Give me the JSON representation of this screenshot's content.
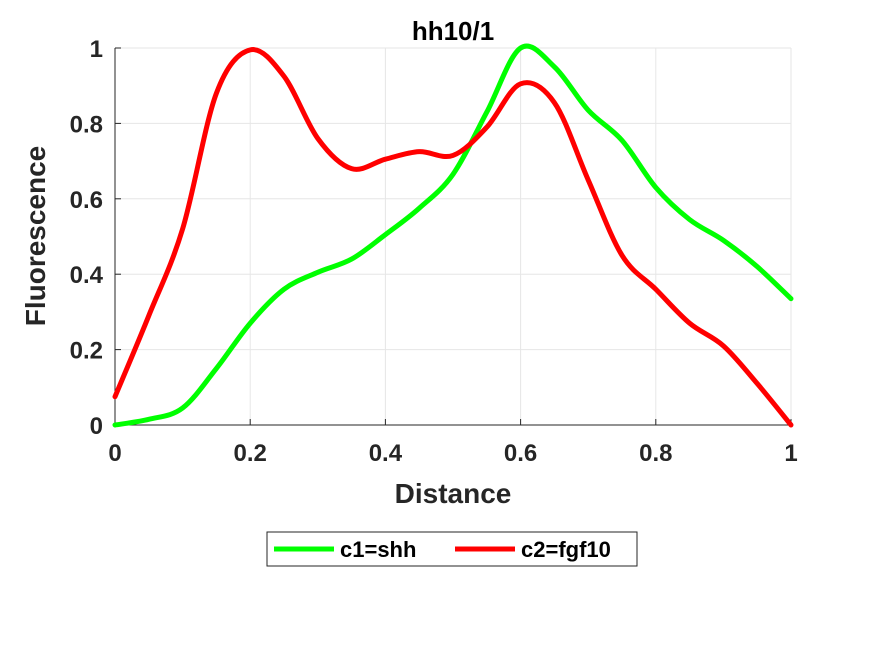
{
  "chart_data": {
    "type": "line",
    "title": "hh10/1",
    "xlabel": "Distance",
    "ylabel": "Fluorescence",
    "xlim": [
      0,
      1
    ],
    "ylim": [
      0,
      1
    ],
    "xticks": [
      "0",
      "0.2",
      "0.4",
      "0.6",
      "0.8",
      "1"
    ],
    "yticks": [
      "0",
      "0.2",
      "0.4",
      "0.6",
      "0.8",
      "1"
    ],
    "grid": true,
    "legend_position": "bottom-outside",
    "series": [
      {
        "name": "c1=shh",
        "color": "#00ff00",
        "x": [
          0,
          0.05,
          0.1,
          0.15,
          0.2,
          0.25,
          0.3,
          0.35,
          0.4,
          0.45,
          0.5,
          0.55,
          0.6,
          0.65,
          0.7,
          0.75,
          0.8,
          0.85,
          0.9,
          0.95,
          1.0
        ],
        "y": [
          0,
          0.015,
          0.045,
          0.15,
          0.27,
          0.36,
          0.405,
          0.44,
          0.505,
          0.575,
          0.665,
          0.83,
          1.0,
          0.95,
          0.835,
          0.755,
          0.63,
          0.545,
          0.49,
          0.42,
          0.335
        ]
      },
      {
        "name": "c2=fgf10",
        "color": "#ff0000",
        "x": [
          0,
          0.05,
          0.1,
          0.15,
          0.2,
          0.25,
          0.3,
          0.35,
          0.4,
          0.45,
          0.5,
          0.55,
          0.6,
          0.65,
          0.7,
          0.75,
          0.8,
          0.85,
          0.9,
          0.95,
          1.0
        ],
        "y": [
          0.075,
          0.29,
          0.52,
          0.88,
          0.995,
          0.925,
          0.76,
          0.68,
          0.705,
          0.725,
          0.715,
          0.79,
          0.905,
          0.855,
          0.65,
          0.45,
          0.36,
          0.27,
          0.21,
          0.11,
          0
        ]
      }
    ]
  }
}
